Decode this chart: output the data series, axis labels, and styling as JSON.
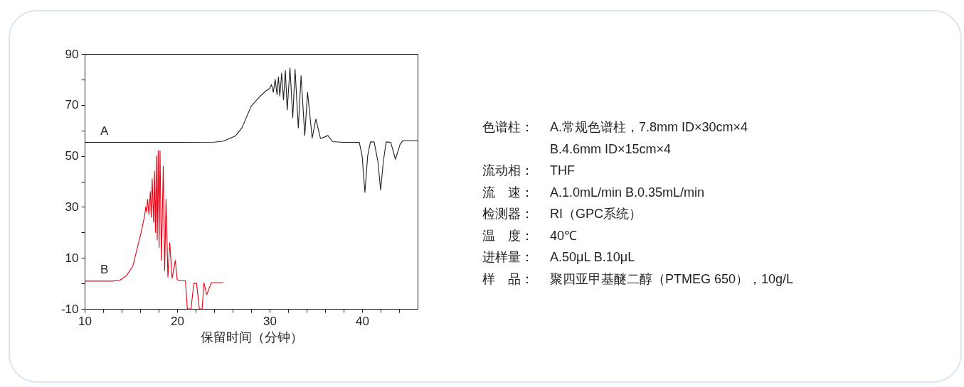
{
  "chart_data": {
    "type": "line",
    "xlabel": "保留时间（分钟）",
    "xlim": [
      10,
      46
    ],
    "ylim": [
      -10,
      90
    ],
    "xticks": [
      10,
      {
        "value": 12,
        "label": null
      },
      {
        "value": 14,
        "label": null
      },
      {
        "value": 16,
        "label": null
      },
      {
        "value": 18,
        "label": null
      },
      20,
      {
        "value": 22,
        "label": null
      },
      {
        "value": 24,
        "label": null
      },
      {
        "value": 26,
        "label": null
      },
      {
        "value": 28,
        "label": null
      },
      30,
      {
        "value": 32,
        "label": null
      },
      {
        "value": 34,
        "label": null
      },
      {
        "value": 36,
        "label": null
      },
      {
        "value": 38,
        "label": null
      },
      40,
      {
        "value": 42,
        "label": null
      },
      {
        "value": 44,
        "label": null
      }
    ],
    "yticks": [
      -10,
      {
        "value": 0,
        "label": null
      },
      10,
      {
        "value": 20,
        "label": null
      },
      30,
      {
        "value": 40,
        "label": null
      },
      50,
      {
        "value": 60,
        "label": null
      },
      70,
      {
        "value": 80,
        "label": null
      },
      90
    ],
    "legend": false,
    "line_style": "solid",
    "series": [
      {
        "name": "A",
        "color": "#231f20",
        "x": [
          10,
          20,
          24,
          25,
          26.3,
          27,
          28,
          29,
          29.6,
          30,
          30.2,
          30.4,
          30.6,
          30.8,
          30.95,
          31.1,
          31.3,
          31.5,
          31.7,
          31.9,
          32.2,
          32.5,
          32.75,
          33.1,
          33.4,
          33.8,
          34.1,
          34.6,
          35.0,
          35.5,
          36.3,
          36.8,
          38,
          39.7,
          40.0,
          40.3,
          40.6,
          40.9,
          41.3,
          41.7,
          42.0,
          42.3,
          42.6,
          43.1,
          43.6,
          44.1,
          44.4,
          46
        ],
        "values": [
          55.3,
          55.3,
          55.4,
          55.8,
          57.8,
          61,
          69.5,
          73.5,
          75.5,
          76.5,
          78,
          75,
          80,
          74,
          81,
          73.5,
          82.5,
          72,
          83.5,
          68,
          84.5,
          65,
          84,
          61,
          81.5,
          58,
          75,
          57,
          64.5,
          56.8,
          58,
          55.6,
          55.3,
          55.3,
          50,
          35.7,
          50,
          55.5,
          55.5,
          48,
          36.6,
          48,
          55.5,
          55.3,
          48.7,
          54.5,
          56,
          56
        ]
      },
      {
        "name": "B",
        "color": "#e60012",
        "x": [
          10,
          13,
          13.8,
          14.5,
          15.2,
          16.1,
          16.5,
          16.6,
          16.7,
          16.8,
          16.95,
          17.1,
          17.2,
          17.3,
          17.45,
          17.55,
          17.65,
          17.75,
          17.85,
          17.95,
          18.05,
          18.15,
          18.3,
          18.5,
          18.65,
          18.8,
          19.0,
          19.2,
          19.45,
          19.8,
          20.0,
          20.3,
          20.9,
          21.1,
          21.5,
          21.8,
          22.1,
          22.4,
          22.7,
          22.9,
          23.2,
          23.7,
          25.0
        ],
        "values": [
          0.9,
          0.9,
          1.2,
          3,
          6.7,
          19.9,
          26.9,
          30,
          28,
          33,
          27,
          36,
          26,
          41,
          24,
          44,
          20,
          50,
          17,
          52,
          14,
          52,
          9,
          46,
          5,
          33,
          2.5,
          16,
          2,
          9,
          1.5,
          1.0,
          1.0,
          -10,
          -10,
          0,
          0,
          -10,
          -10,
          0.2,
          -4.4,
          0.3,
          0.3
        ]
      }
    ],
    "annotations": [
      "色谱柱： A.常规色谱柱，7.8mm ID×30cm×4",
      "B.4.6mm ID×15cm×4",
      "流动相： THF",
      "流　速： A.1.0mL/min B.0.35mL/min",
      "检测器： RI（GPC系统）",
      "温　度： 40℃",
      "进样量： A.50μL B.10μL",
      "样　品： 聚四亚甲基醚二醇（PTMEG 650），10g/L"
    ]
  }
}
